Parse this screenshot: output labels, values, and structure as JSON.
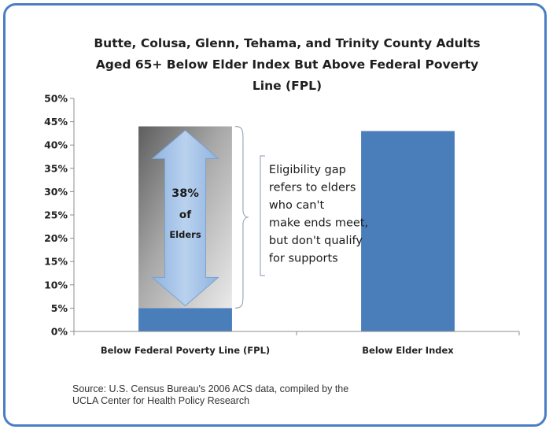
{
  "chart_data": {
    "type": "bar",
    "title_lines": [
      "Butte, Colusa, Glenn, Tehama, and Trinity County Adults",
      "Aged 65+ Below Elder Index But Above  Federal Poverty",
      "Line (FPL)"
    ],
    "categories": [
      "Below Federal Poverty Line (FPL)",
      "Below Elder Index"
    ],
    "values": [
      5,
      43
    ],
    "unit": "%",
    "ylim": [
      0,
      50
    ],
    "yticks": [
      "0%",
      "5%",
      "10%",
      "15%",
      "20%",
      "25%",
      "30%",
      "35%",
      "40%",
      "45%",
      "50%"
    ],
    "grid": false,
    "bar_color": "#4a7ebb",
    "annotation": {
      "gap_range": [
        5,
        44
      ],
      "arrow_lines": [
        "38%",
        "of",
        "Elders"
      ],
      "note_lines": [
        "Eligibility gap",
        "refers to elders",
        "who can't",
        "make ends meet,",
        "but don't qualify",
        "for supports"
      ]
    },
    "source_lines": [
      "Source:  U.S. Census Bureau's 2006 ACS data, compiled by the",
      "UCLA Center  for Health Policy Research"
    ]
  }
}
